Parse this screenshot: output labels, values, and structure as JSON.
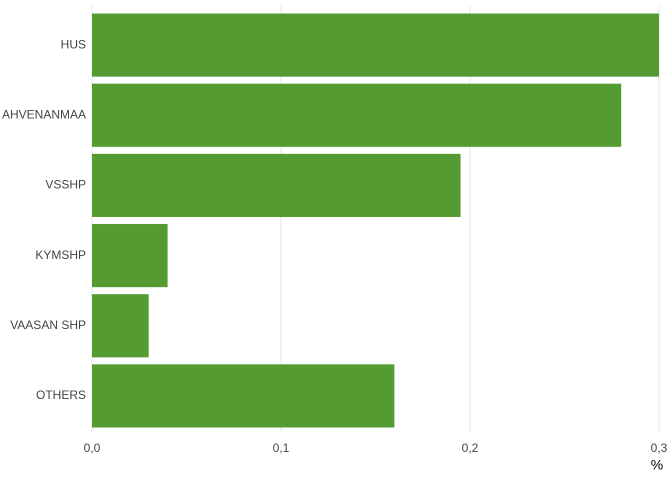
{
  "chart_data": {
    "type": "bar",
    "orientation": "horizontal",
    "categories": [
      "HUS",
      "AHVENANMAA",
      "VSSHP",
      "KYMSHP",
      "VAASAN SHP",
      "OTHERS"
    ],
    "values": [
      0.3,
      0.28,
      0.195,
      0.04,
      0.03,
      0.16
    ],
    "color": "#549b31",
    "xlabel": "%",
    "xlim": [
      0,
      0.3
    ],
    "xticks": [
      {
        "value": 0,
        "label": "0,0"
      },
      {
        "value": 0.1,
        "label": "0,1"
      },
      {
        "value": 0.2,
        "label": "0,2"
      },
      {
        "value": 0.3,
        "label": "0,3"
      }
    ],
    "grid": true
  }
}
